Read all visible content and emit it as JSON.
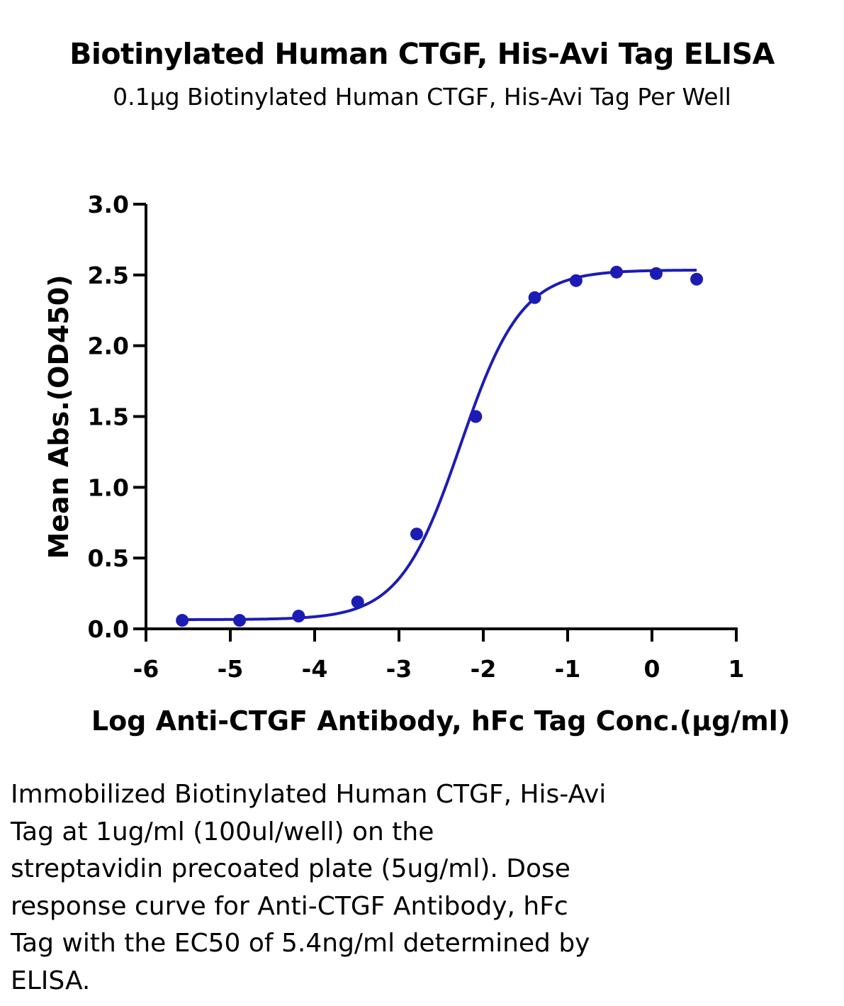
{
  "chart_data": {
    "type": "scatter",
    "title": "Biotinylated Human CTGF, His-Avi Tag ELISA",
    "subtitle": "0.1μg Biotinylated Human CTGF, His-Avi Tag Per Well",
    "xlabel": "Log Anti-CTGF Antibody, hFc Tag Conc.(μg/ml)",
    "ylabel": "Mean Abs.(OD450)",
    "xlim": [
      -6,
      1
    ],
    "ylim": [
      0,
      3.0
    ],
    "x_ticks": [
      "-6",
      "-5",
      "-4",
      "-3",
      "-2",
      "-1",
      "0",
      "1"
    ],
    "y_ticks": [
      "0.0",
      "0.5",
      "1.0",
      "1.5",
      "2.0",
      "2.5",
      "3.0"
    ],
    "series": [
      {
        "color": "#1c1cb4",
        "points": [
          {
            "x": -5.57,
            "y": 0.06
          },
          {
            "x": -4.89,
            "y": 0.06
          },
          {
            "x": -4.19,
            "y": 0.09
          },
          {
            "x": -3.49,
            "y": 0.19
          },
          {
            "x": -2.79,
            "y": 0.67
          },
          {
            "x": -2.09,
            "y": 1.5
          },
          {
            "x": -1.39,
            "y": 2.34
          },
          {
            "x": -0.9,
            "y": 2.46
          },
          {
            "x": -0.42,
            "y": 2.52
          },
          {
            "x": 0.05,
            "y": 2.51
          },
          {
            "x": 0.53,
            "y": 2.47
          }
        ],
        "fit": {
          "bottom": 0.065,
          "top": 2.535,
          "log_ec50": -2.27,
          "hill": 1.2
        }
      }
    ],
    "grid": false,
    "legend": "none"
  },
  "caption": {
    "lines": [
      "Immobilized Biotinylated Human CTGF, His-Avi",
      "Tag at 1ug/ml (100ul/well) on the",
      "streptavidin precoated plate (5ug/ml). Dose",
      "response curve for Anti-CTGF Antibody, hFc",
      "Tag with the EC50 of 5.4ng/ml determined by",
      "ELISA."
    ]
  }
}
